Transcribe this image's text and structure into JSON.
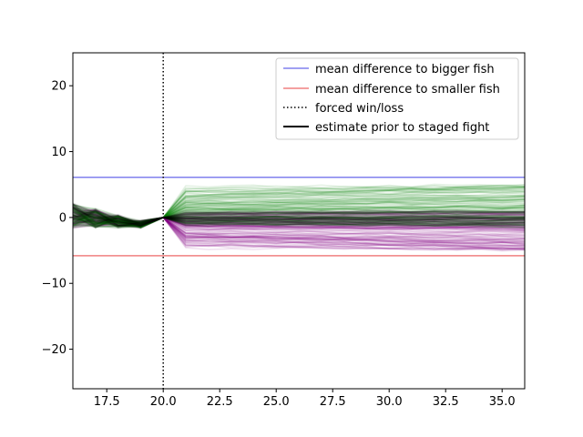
{
  "chart_data": {
    "type": "line",
    "title": "",
    "xlabel": "",
    "ylabel": "",
    "xlim": [
      16.0,
      36.0
    ],
    "ylim": [
      -26.0,
      25.0
    ],
    "xticks": [
      17.5,
      20.0,
      22.5,
      25.0,
      27.5,
      30.0,
      32.5,
      35.0
    ],
    "xtick_labels": [
      "17.5",
      "20.0",
      "22.5",
      "25.0",
      "27.5",
      "30.0",
      "32.5",
      "35.0"
    ],
    "yticks": [
      -20,
      -10,
      0,
      10,
      20
    ],
    "ytick_labels": [
      "−20",
      "−10",
      "0",
      "10",
      "20"
    ],
    "grid": false,
    "legend_placement": "top-right",
    "reference_lines": [
      {
        "kind": "horizontal",
        "value": 6.1,
        "label": "mean difference to bigger fish",
        "color": "#8080ee"
      },
      {
        "kind": "horizontal",
        "value": -5.8,
        "label": "mean difference to smaller fish",
        "color": "#f08080"
      },
      {
        "kind": "vertical",
        "value": 20.0,
        "label": "forced win/loss",
        "color": "#000000",
        "style": "dotted"
      }
    ],
    "legend": [
      {
        "label": "mean difference to bigger fish",
        "color": "#8080ee",
        "style": "solid"
      },
      {
        "label": "mean difference to smaller fish",
        "color": "#f08080",
        "style": "solid"
      },
      {
        "label": "forced win/loss",
        "color": "#000000",
        "style": "dotted"
      },
      {
        "label": "estimate prior to staged fight",
        "color": "#000000",
        "style": "solid"
      }
    ],
    "trajectory_ensemble": {
      "x_start": 16,
      "x_end": 36,
      "pin_x": 20,
      "pin_y": 0,
      "prior_band": [
        -1.5,
        3.0
      ],
      "winner_color": "#008000",
      "loser_color": "#800080",
      "prior_color": "#000000",
      "winner_range_at_end": [
        -1.5,
        5.0
      ],
      "loser_range_at_end": [
        -5.0,
        1.0
      ],
      "line_alpha": 0.1
    }
  }
}
